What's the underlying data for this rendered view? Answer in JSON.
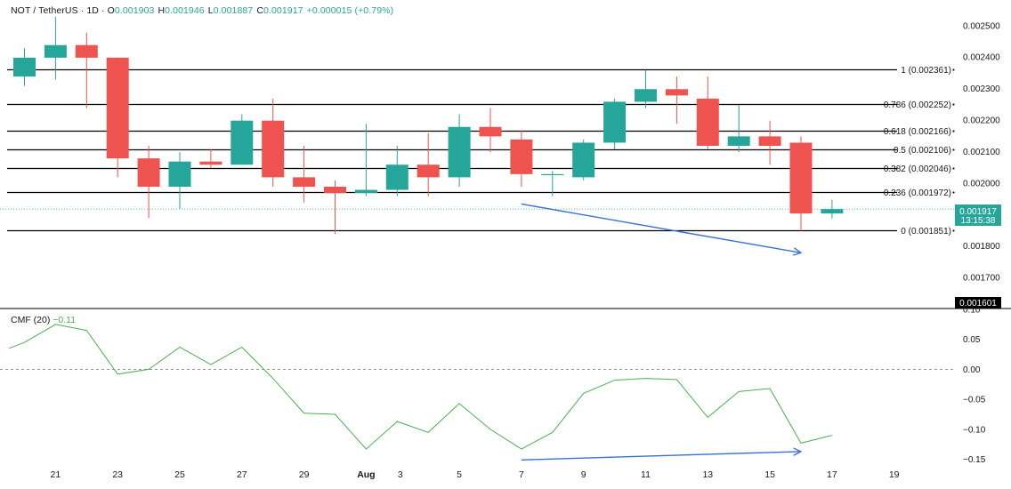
{
  "header": {
    "symbol": "NOT / TetherUS · 1D · O",
    "open": "0.001903",
    "high_label": "H",
    "high": "0.001946",
    "low_label": "L",
    "low": "0.001887",
    "close_label": "C",
    "close": "0.001917",
    "change": "+0.000015 (+0.79%)"
  },
  "cmf": {
    "label": "CMF (20)",
    "value": "−0.11"
  },
  "last_price": {
    "price": "0.001917",
    "countdown": "13:15:38"
  },
  "crosshair_price": "0.001601",
  "colors": {
    "up": "#26a69a",
    "down": "#ef5350",
    "cmf_line": "#4caf50",
    "arrow": "#3a6fd8",
    "fib": "#000000",
    "axis_text": "#131722"
  },
  "chart_data": [
    {
      "type": "candlestick",
      "title": "",
      "y_axis_ticks": [
        0.0025,
        0.0024,
        0.0023,
        0.0022,
        0.0021,
        0.002,
        0.0018,
        0.0017
      ],
      "y_axis_tick_labels": [
        "0.002500",
        "0.002400",
        "0.002300",
        "0.002200",
        "0.002100",
        "0.002000",
        "0.001800",
        "0.001700"
      ],
      "ylim": [
        0.001601,
        0.00257
      ],
      "x_tick_labels": [
        "21",
        "23",
        "25",
        "27",
        "29",
        "Aug",
        "3",
        "5",
        "7",
        "9",
        "11",
        "13",
        "15",
        "17",
        "19"
      ],
      "candles": [
        {
          "o": 0.002338,
          "h": 0.002428,
          "l": 0.002308,
          "c": 0.002398
        },
        {
          "o": 0.002398,
          "h": 0.002528,
          "l": 0.002328,
          "c": 0.002438
        },
        {
          "o": 0.002438,
          "h": 0.002478,
          "l": 0.002238,
          "c": 0.002398
        },
        {
          "o": 0.002398,
          "h": 0.002398,
          "l": 0.002018,
          "c": 0.002078
        },
        {
          "o": 0.002078,
          "h": 0.002118,
          "l": 0.001888,
          "c": 0.001988
        },
        {
          "o": 0.001988,
          "h": 0.002098,
          "l": 0.001918,
          "c": 0.002068
        },
        {
          "o": 0.002068,
          "h": 0.002108,
          "l": 0.002048,
          "c": 0.002058
        },
        {
          "o": 0.002058,
          "h": 0.002218,
          "l": 0.002058,
          "c": 0.002198
        },
        {
          "o": 0.002198,
          "h": 0.002268,
          "l": 0.001988,
          "c": 0.002018
        },
        {
          "o": 0.002018,
          "h": 0.002118,
          "l": 0.001938,
          "c": 0.001988
        },
        {
          "o": 0.001988,
          "h": 0.002008,
          "l": 0.001838,
          "c": 0.001968
        },
        {
          "o": 0.001968,
          "h": 0.002188,
          "l": 0.001958,
          "c": 0.001978
        },
        {
          "o": 0.001978,
          "h": 0.002118,
          "l": 0.001958,
          "c": 0.002058
        },
        {
          "o": 0.002058,
          "h": 0.002158,
          "l": 0.001958,
          "c": 0.002018
        },
        {
          "o": 0.002018,
          "h": 0.002218,
          "l": 0.001988,
          "c": 0.002178
        },
        {
          "o": 0.002178,
          "h": 0.002238,
          "l": 0.002098,
          "c": 0.002148
        },
        {
          "o": 0.002138,
          "h": 0.002168,
          "l": 0.001988,
          "c": 0.002028
        },
        {
          "o": 0.002028,
          "h": 0.002038,
          "l": 0.001958,
          "c": 0.002028
        },
        {
          "o": 0.002018,
          "h": 0.002138,
          "l": 0.002008,
          "c": 0.002128
        },
        {
          "o": 0.002128,
          "h": 0.002268,
          "l": 0.002108,
          "c": 0.002258
        },
        {
          "o": 0.002258,
          "h": 0.002358,
          "l": 0.002238,
          "c": 0.002298
        },
        {
          "o": 0.002298,
          "h": 0.002338,
          "l": 0.002188,
          "c": 0.002278
        },
        {
          "o": 0.002268,
          "h": 0.002338,
          "l": 0.002108,
          "c": 0.002118
        },
        {
          "o": 0.002118,
          "h": 0.002248,
          "l": 0.002098,
          "c": 0.002148
        },
        {
          "o": 0.002148,
          "h": 0.002198,
          "l": 0.002058,
          "c": 0.002118
        },
        {
          "o": 0.002128,
          "h": 0.002148,
          "l": 0.001848,
          "c": 0.001903
        },
        {
          "o": 0.001903,
          "h": 0.001946,
          "l": 0.001887,
          "c": 0.001917
        }
      ],
      "fib_levels": [
        {
          "price": 0.002361,
          "label": "1 (0.002361)"
        },
        {
          "price": 0.002252,
          "label": "0.786 (0.002252)"
        },
        {
          "price": 0.002166,
          "label": "0.618 (0.002166)"
        },
        {
          "price": 0.002106,
          "label": "0.5 (0.002106)"
        },
        {
          "price": 0.002046,
          "label": "0.382 (0.002046)"
        },
        {
          "price": 0.001972,
          "label": "0.236 (0.001972)"
        },
        {
          "price": 0.001851,
          "label": "0 (0.001851)"
        }
      ],
      "trend_arrow": {
        "from_candle": 16,
        "from_price": 0.001933,
        "to_candle": 25,
        "to_price": 0.001778
      }
    },
    {
      "type": "line",
      "title": "CMF (20)",
      "y_axis_ticks": [
        0.1,
        0.05,
        0,
        -0.05,
        -0.1,
        -0.15
      ],
      "y_axis_tick_labels": [
        "0.10",
        "0.05",
        "0.00",
        "−0.05",
        "−0.10",
        "−0.15"
      ],
      "ylim": [
        -0.158,
        0.1
      ],
      "zero_line": true,
      "series": [
        {
          "points": [
            [
              -0.5,
              0.035
            ],
            [
              0,
              0.045
            ],
            [
              1,
              0.075
            ],
            [
              2,
              0.065
            ],
            [
              3,
              -0.008
            ],
            [
              4,
              0.0
            ],
            [
              5,
              0.037
            ],
            [
              6,
              0.008
            ],
            [
              7,
              0.037
            ],
            [
              8,
              -0.015
            ],
            [
              9,
              -0.073
            ],
            [
              10,
              -0.075
            ],
            [
              11,
              -0.133
            ],
            [
              12,
              -0.087
            ],
            [
              13,
              -0.105
            ],
            [
              14,
              -0.057
            ],
            [
              15,
              -0.1
            ],
            [
              16,
              -0.133
            ],
            [
              17,
              -0.105
            ],
            [
              18,
              -0.04
            ],
            [
              19,
              -0.018
            ],
            [
              20,
              -0.015
            ],
            [
              21,
              -0.017
            ],
            [
              22,
              -0.08
            ],
            [
              23,
              -0.037
            ],
            [
              24,
              -0.032
            ],
            [
              25,
              -0.123
            ],
            [
              26,
              -0.11
            ]
          ]
        }
      ],
      "trend_arrow": {
        "from_candle": 16,
        "from_value": -0.151,
        "to_candle": 25,
        "to_value": -0.137
      }
    }
  ]
}
